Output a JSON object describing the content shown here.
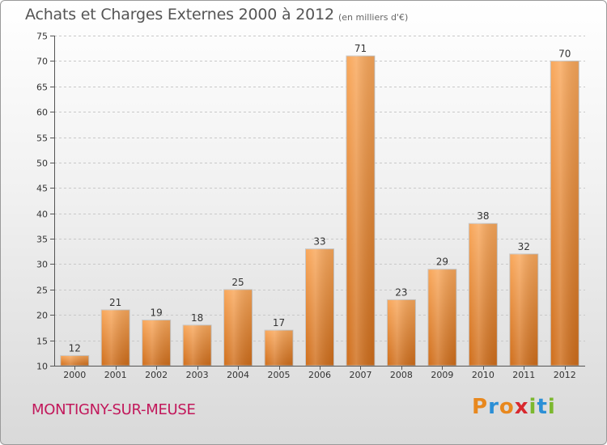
{
  "header": {
    "title": "Achats et Charges Externes 2000 à 2012",
    "subtitle": "(en milliers d'€)"
  },
  "footer": {
    "commune": "MONTIGNY-SUR-MEUSE",
    "logo_letters": [
      "P",
      "r",
      "o",
      "x",
      "i",
      "t",
      "i"
    ],
    "logo_colors": [
      "#e8881e",
      "#2b8fd6",
      "#e8881e",
      "#d8282e",
      "#7cb82f",
      "#2b8fd6",
      "#7cb82f"
    ]
  },
  "colors": {
    "bar_light": "#f9a75a",
    "bar_dark": "#cf6d1a",
    "grid": "#c8c8c8",
    "axis": "#555555",
    "text": "#333333"
  },
  "chart_data": {
    "type": "bar",
    "categories": [
      "2000",
      "2001",
      "2002",
      "2003",
      "2004",
      "2005",
      "2006",
      "2007",
      "2008",
      "2009",
      "2010",
      "2011",
      "2012"
    ],
    "values": [
      12,
      21,
      19,
      18,
      25,
      17,
      33,
      71,
      23,
      29,
      38,
      32,
      70
    ],
    "data_labels": [
      "12",
      "21",
      "19",
      "18",
      "25",
      "17",
      "33",
      "71",
      "23",
      "29",
      "38",
      "32",
      "70"
    ],
    "title": "Achats et Charges Externes 2000 à 2012",
    "subtitle": "(en milliers d'€)",
    "ylim": [
      10,
      75
    ],
    "yticks": [
      10,
      15,
      20,
      25,
      30,
      35,
      40,
      45,
      50,
      55,
      60,
      65,
      70,
      75
    ],
    "grid": true
  }
}
